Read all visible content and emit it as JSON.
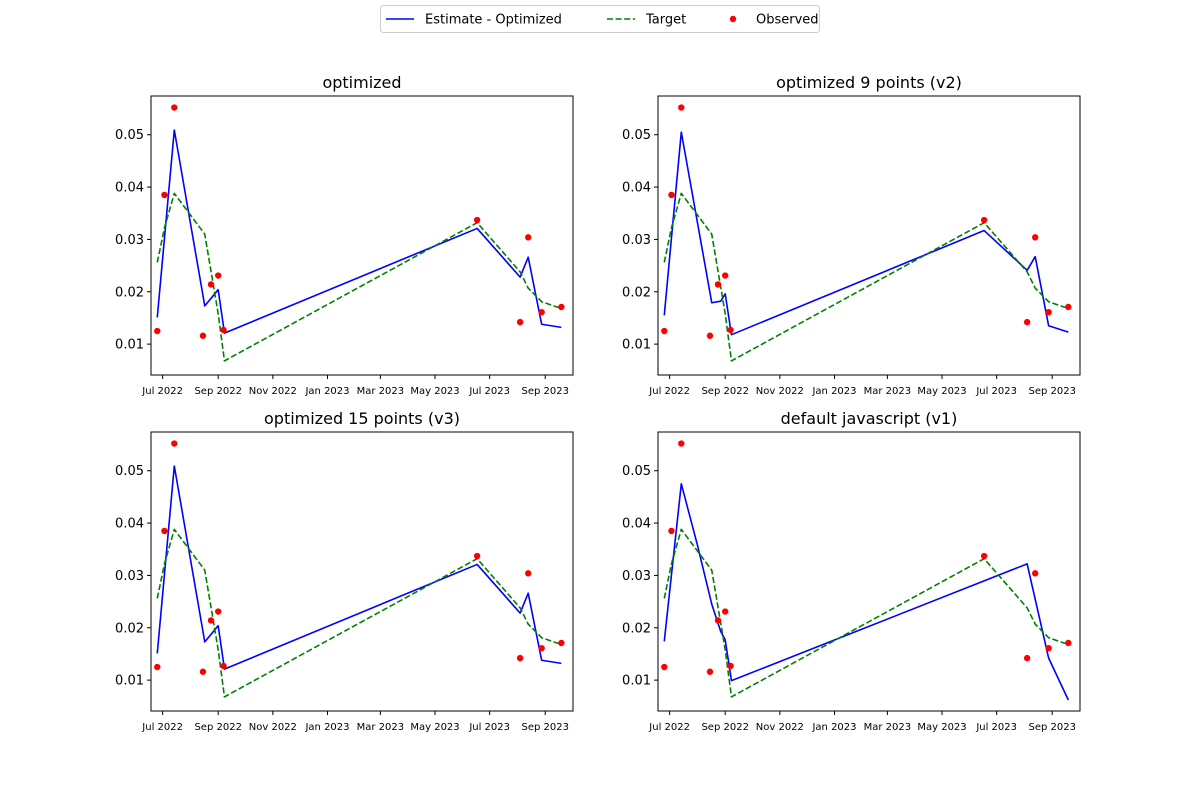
{
  "legend": {
    "entries": [
      {
        "label": "Estimate - Optimized",
        "color": "#0000ff",
        "style": "solid"
      },
      {
        "label": "Target",
        "color": "#008000",
        "style": "dashed"
      },
      {
        "label": "Observed",
        "color": "#ff0000",
        "style": "marker"
      }
    ],
    "placement": "top-center"
  },
  "colors": {
    "estimate": "#0000ff",
    "target": "#008000",
    "observed": "#ff0000"
  },
  "chart_data": [
    {
      "type": "line",
      "title": "optimized",
      "xlabel": "",
      "ylabel": "",
      "xlim": [
        "2022-06-18",
        "2023-10-02"
      ],
      "ylim": [
        0.0041,
        0.0574
      ],
      "grid": false,
      "x_ticks": [
        {
          "date": "2022-07-01",
          "label": "Jul 2022"
        },
        {
          "date": "2022-09-01",
          "label": "Sep 2022"
        },
        {
          "date": "2022-11-01",
          "label": "Nov 2022"
        },
        {
          "date": "2023-01-01",
          "label": "Jan 2023"
        },
        {
          "date": "2023-03-01",
          "label": "Mar 2023"
        },
        {
          "date": "2023-05-01",
          "label": "May 2023"
        },
        {
          "date": "2023-07-01",
          "label": "Jul 2023"
        },
        {
          "date": "2023-09-01",
          "label": "Sep 2023"
        }
      ],
      "y_ticks": [
        {
          "value": 0.01,
          "label": "0.01"
        },
        {
          "value": 0.02,
          "label": "0.02"
        },
        {
          "value": 0.03,
          "label": "0.03"
        },
        {
          "value": 0.04,
          "label": "0.04"
        },
        {
          "value": 0.05,
          "label": "0.05"
        }
      ],
      "series": [
        {
          "name": "Estimate - Optimized",
          "kind": "line",
          "x": [
            "2022-06-25",
            "2022-07-14",
            "2022-08-17",
            "2022-09-01",
            "2022-09-08",
            "2023-06-17",
            "2023-08-04",
            "2023-08-13",
            "2023-08-28",
            "2023-09-19"
          ],
          "y": [
            0.0151,
            0.0509,
            0.0173,
            0.0204,
            0.0121,
            0.0321,
            0.0228,
            0.0266,
            0.0138,
            0.0132
          ]
        },
        {
          "name": "Target",
          "kind": "dashed",
          "x": [
            "2022-06-25",
            "2022-07-03",
            "2022-07-14",
            "2022-08-17",
            "2022-09-01",
            "2022-09-08",
            "2023-06-17",
            "2023-08-04",
            "2023-08-13",
            "2023-08-28",
            "2023-09-19"
          ],
          "y": [
            0.0256,
            0.0322,
            0.0388,
            0.031,
            0.0158,
            0.0068,
            0.0332,
            0.0238,
            0.0207,
            0.0181,
            0.0168
          ]
        },
        {
          "name": "Observed",
          "kind": "scatter",
          "x": [
            "2022-06-25",
            "2022-07-03",
            "2022-07-14",
            "2022-08-15",
            "2022-08-24",
            "2022-09-01",
            "2022-09-07",
            "2023-06-17",
            "2023-08-04",
            "2023-08-13",
            "2023-08-28",
            "2023-09-19"
          ],
          "y": [
            0.0125,
            0.0385,
            0.0552,
            0.0116,
            0.0214,
            0.0231,
            0.0127,
            0.0337,
            0.0142,
            0.0304,
            0.0161,
            0.0171
          ]
        }
      ]
    },
    {
      "type": "line",
      "title": "optimized 9 points (v2)",
      "xlabel": "",
      "ylabel": "",
      "xlim": [
        "2022-06-18",
        "2023-10-02"
      ],
      "ylim": [
        0.0041,
        0.0574
      ],
      "grid": false,
      "x_ticks": [
        {
          "date": "2022-07-01",
          "label": "Jul 2022"
        },
        {
          "date": "2022-09-01",
          "label": "Sep 2022"
        },
        {
          "date": "2022-11-01",
          "label": "Nov 2022"
        },
        {
          "date": "2023-01-01",
          "label": "Jan 2023"
        },
        {
          "date": "2023-03-01",
          "label": "Mar 2023"
        },
        {
          "date": "2023-05-01",
          "label": "May 2023"
        },
        {
          "date": "2023-07-01",
          "label": "Jul 2023"
        },
        {
          "date": "2023-09-01",
          "label": "Sep 2023"
        }
      ],
      "y_ticks": [
        {
          "value": 0.01,
          "label": "0.01"
        },
        {
          "value": 0.02,
          "label": "0.02"
        },
        {
          "value": 0.03,
          "label": "0.03"
        },
        {
          "value": 0.04,
          "label": "0.04"
        },
        {
          "value": 0.05,
          "label": "0.05"
        }
      ],
      "series": [
        {
          "name": "Estimate - Optimized",
          "kind": "line",
          "x": [
            "2022-06-25",
            "2022-07-14",
            "2022-08-17",
            "2022-08-27",
            "2022-09-01",
            "2022-09-08",
            "2023-06-17",
            "2023-08-04",
            "2023-08-13",
            "2023-08-28",
            "2023-09-19"
          ],
          "y": [
            0.0155,
            0.0505,
            0.0179,
            0.0182,
            0.0196,
            0.0118,
            0.0317,
            0.0241,
            0.0267,
            0.0135,
            0.0123
          ]
        },
        {
          "name": "Target",
          "kind": "dashed",
          "x": [
            "2022-06-25",
            "2022-07-03",
            "2022-07-14",
            "2022-08-17",
            "2022-09-01",
            "2022-09-08",
            "2023-06-17",
            "2023-08-04",
            "2023-08-13",
            "2023-08-28",
            "2023-09-19"
          ],
          "y": [
            0.0256,
            0.0322,
            0.0388,
            0.031,
            0.0158,
            0.0068,
            0.0332,
            0.0238,
            0.0207,
            0.0181,
            0.0168
          ]
        },
        {
          "name": "Observed",
          "kind": "scatter",
          "x": [
            "2022-06-25",
            "2022-07-03",
            "2022-07-14",
            "2022-08-15",
            "2022-08-24",
            "2022-09-01",
            "2022-09-07",
            "2023-06-17",
            "2023-08-04",
            "2023-08-13",
            "2023-08-28",
            "2023-09-19"
          ],
          "y": [
            0.0125,
            0.0385,
            0.0552,
            0.0116,
            0.0214,
            0.0231,
            0.0127,
            0.0337,
            0.0142,
            0.0304,
            0.0161,
            0.0171
          ]
        }
      ]
    },
    {
      "type": "line",
      "title": "optimized 15 points (v3)",
      "xlabel": "",
      "ylabel": "",
      "xlim": [
        "2022-06-18",
        "2023-10-02"
      ],
      "ylim": [
        0.0041,
        0.0574
      ],
      "grid": false,
      "x_ticks": [
        {
          "date": "2022-07-01",
          "label": "Jul 2022"
        },
        {
          "date": "2022-09-01",
          "label": "Sep 2022"
        },
        {
          "date": "2022-11-01",
          "label": "Nov 2022"
        },
        {
          "date": "2023-01-01",
          "label": "Jan 2023"
        },
        {
          "date": "2023-03-01",
          "label": "Mar 2023"
        },
        {
          "date": "2023-05-01",
          "label": "May 2023"
        },
        {
          "date": "2023-07-01",
          "label": "Jul 2023"
        },
        {
          "date": "2023-09-01",
          "label": "Sep 2023"
        }
      ],
      "y_ticks": [
        {
          "value": 0.01,
          "label": "0.01"
        },
        {
          "value": 0.02,
          "label": "0.02"
        },
        {
          "value": 0.03,
          "label": "0.03"
        },
        {
          "value": 0.04,
          "label": "0.04"
        },
        {
          "value": 0.05,
          "label": "0.05"
        }
      ],
      "series": [
        {
          "name": "Estimate - Optimized",
          "kind": "line",
          "x": [
            "2022-06-25",
            "2022-07-14",
            "2022-08-17",
            "2022-09-01",
            "2022-09-08",
            "2023-06-17",
            "2023-08-04",
            "2023-08-13",
            "2023-08-28",
            "2023-09-19"
          ],
          "y": [
            0.0151,
            0.0509,
            0.0173,
            0.0204,
            0.0121,
            0.0321,
            0.0228,
            0.0266,
            0.0138,
            0.0132
          ]
        },
        {
          "name": "Target",
          "kind": "dashed",
          "x": [
            "2022-06-25",
            "2022-07-03",
            "2022-07-14",
            "2022-08-17",
            "2022-09-01",
            "2022-09-08",
            "2023-06-17",
            "2023-08-04",
            "2023-08-13",
            "2023-08-28",
            "2023-09-19"
          ],
          "y": [
            0.0256,
            0.0322,
            0.0388,
            0.031,
            0.0158,
            0.0068,
            0.0332,
            0.0238,
            0.0207,
            0.0181,
            0.0168
          ]
        },
        {
          "name": "Observed",
          "kind": "scatter",
          "x": [
            "2022-06-25",
            "2022-07-03",
            "2022-07-14",
            "2022-08-15",
            "2022-08-24",
            "2022-09-01",
            "2022-09-07",
            "2023-06-17",
            "2023-08-04",
            "2023-08-13",
            "2023-08-28",
            "2023-09-19"
          ],
          "y": [
            0.0125,
            0.0385,
            0.0552,
            0.0116,
            0.0214,
            0.0231,
            0.0127,
            0.0337,
            0.0142,
            0.0304,
            0.0161,
            0.0171
          ]
        }
      ]
    },
    {
      "type": "line",
      "title": "default javascript (v1)",
      "xlabel": "",
      "ylabel": "",
      "xlim": [
        "2022-06-18",
        "2023-10-02"
      ],
      "ylim": [
        0.0041,
        0.0574
      ],
      "grid": false,
      "x_ticks": [
        {
          "date": "2022-07-01",
          "label": "Jul 2022"
        },
        {
          "date": "2022-09-01",
          "label": "Sep 2022"
        },
        {
          "date": "2022-11-01",
          "label": "Nov 2022"
        },
        {
          "date": "2023-01-01",
          "label": "Jan 2023"
        },
        {
          "date": "2023-03-01",
          "label": "Mar 2023"
        },
        {
          "date": "2023-05-01",
          "label": "May 2023"
        },
        {
          "date": "2023-07-01",
          "label": "Jul 2023"
        },
        {
          "date": "2023-09-01",
          "label": "Sep 2023"
        }
      ],
      "y_ticks": [
        {
          "value": 0.01,
          "label": "0.01"
        },
        {
          "value": 0.02,
          "label": "0.02"
        },
        {
          "value": 0.03,
          "label": "0.03"
        },
        {
          "value": 0.04,
          "label": "0.04"
        },
        {
          "value": 0.05,
          "label": "0.05"
        }
      ],
      "series": [
        {
          "name": "Estimate - Optimized",
          "kind": "line",
          "x": [
            "2022-06-25",
            "2022-07-14",
            "2022-08-01",
            "2022-08-17",
            "2022-08-27",
            "2022-09-01",
            "2022-09-08",
            "2023-08-04",
            "2023-08-28",
            "2023-09-19"
          ],
          "y": [
            0.0174,
            0.0475,
            0.0358,
            0.0245,
            0.0193,
            0.0177,
            0.0099,
            0.0322,
            0.0142,
            0.0062
          ]
        },
        {
          "name": "Target",
          "kind": "dashed",
          "x": [
            "2022-06-25",
            "2022-07-03",
            "2022-07-14",
            "2022-08-17",
            "2022-09-01",
            "2022-09-08",
            "2023-06-17",
            "2023-08-04",
            "2023-08-13",
            "2023-08-28",
            "2023-09-19"
          ],
          "y": [
            0.0256,
            0.0322,
            0.0388,
            0.031,
            0.0158,
            0.0068,
            0.0332,
            0.0238,
            0.0207,
            0.0181,
            0.0168
          ]
        },
        {
          "name": "Observed",
          "kind": "scatter",
          "x": [
            "2022-06-25",
            "2022-07-03",
            "2022-07-14",
            "2022-08-15",
            "2022-08-24",
            "2022-09-01",
            "2022-09-07",
            "2023-06-17",
            "2023-08-04",
            "2023-08-13",
            "2023-08-28",
            "2023-09-19"
          ],
          "y": [
            0.0125,
            0.0385,
            0.0552,
            0.0116,
            0.0214,
            0.0231,
            0.0127,
            0.0337,
            0.0142,
            0.0304,
            0.0161,
            0.0171
          ]
        }
      ]
    }
  ]
}
